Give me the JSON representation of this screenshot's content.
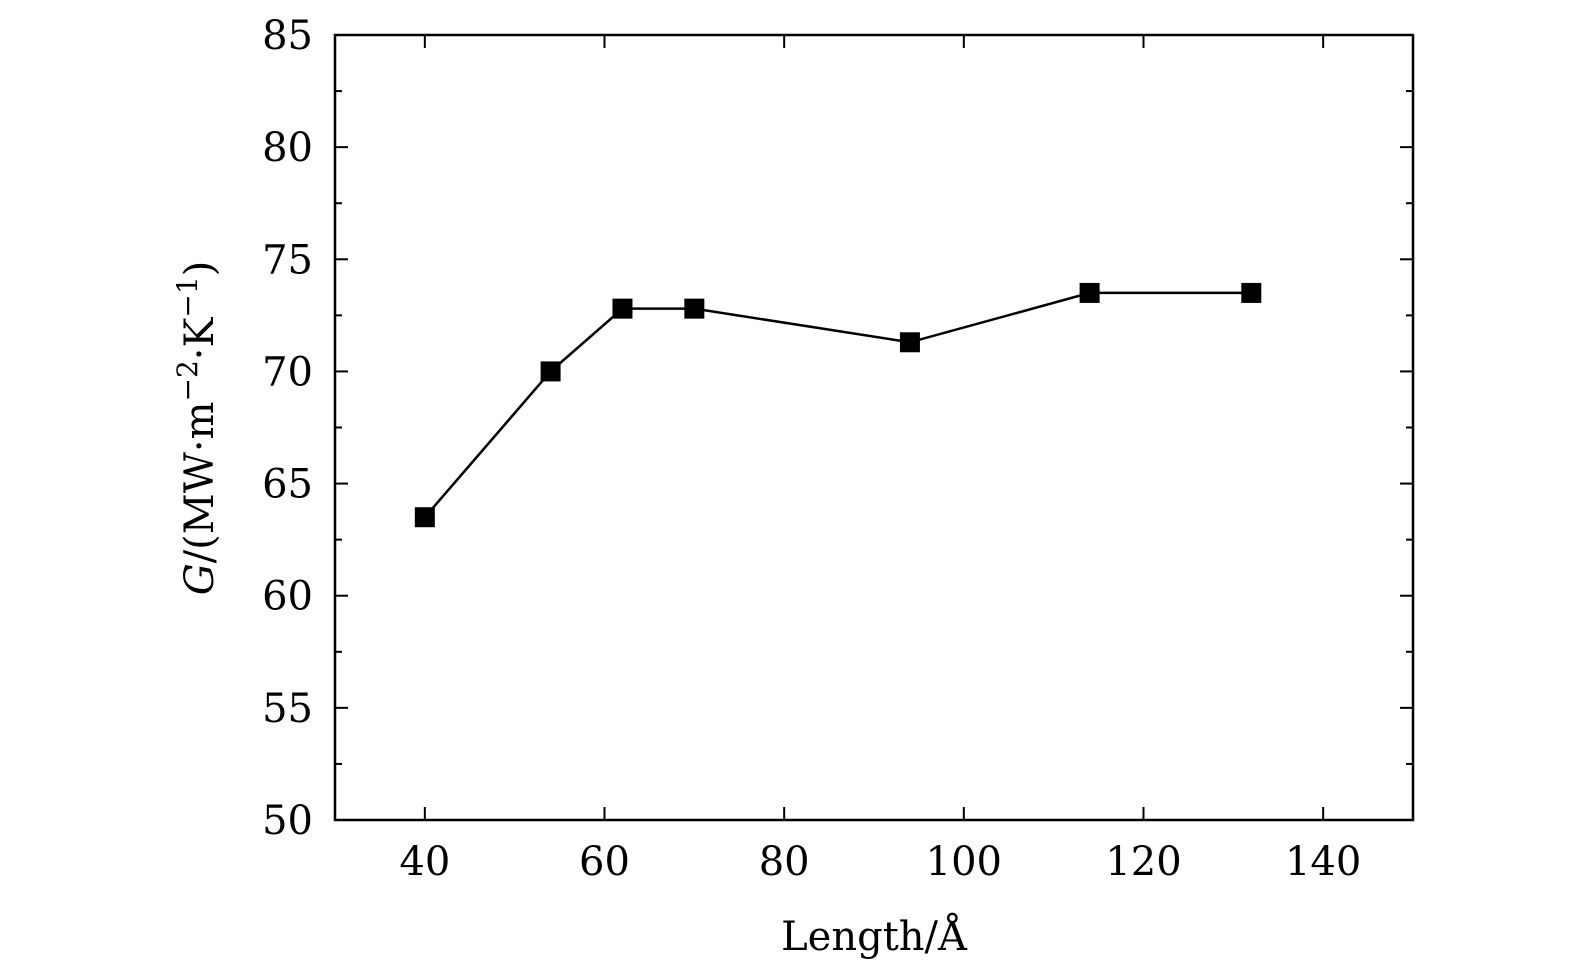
{
  "chart_data": {
    "type": "line",
    "title": "",
    "xlabel": "Length/Å",
    "ylabel_symbol": "G",
    "ylabel_rest": "/(MW·m",
    "ylabel_sup1": "−2",
    "ylabel_mid": "·K",
    "ylabel_sup2": "−1",
    "ylabel_close": ")",
    "xlim": [
      30,
      150
    ],
    "ylim": [
      50,
      85
    ],
    "xticks": [
      40,
      60,
      80,
      100,
      120,
      140
    ],
    "yticks": [
      50,
      55,
      60,
      65,
      70,
      75,
      80,
      85
    ],
    "grid": false,
    "series": [
      {
        "x": [
          40,
          54,
          62,
          70,
          94,
          114,
          132
        ],
        "y": [
          63.5,
          70.0,
          72.8,
          72.8,
          71.3,
          73.5,
          73.5
        ],
        "marker": "square",
        "color": "#000000"
      }
    ]
  }
}
